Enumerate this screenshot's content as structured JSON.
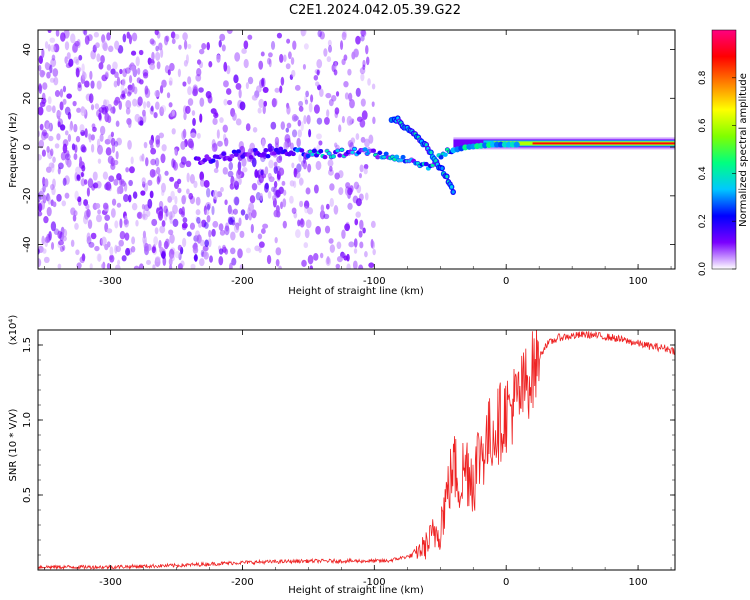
{
  "title": "C2E1.2024.042.05.39.G22",
  "chart_data": [
    {
      "type": "heatmap",
      "name": "spectrogram",
      "xlabel": "Height of straight line (km)",
      "ylabel": "Frequency (Hz)",
      "xlim": [
        -355,
        128
      ],
      "ylim": [
        -50,
        48
      ],
      "x_ticks": [
        -300,
        -200,
        -100,
        0,
        100
      ],
      "y_ticks": [
        -40,
        -20,
        0,
        20,
        40
      ],
      "grid": false,
      "colorbar": {
        "label": "Normalized spectral amplitude",
        "range": [
          0.0,
          1.0
        ],
        "ticks": [
          "0.0",
          "0.2",
          "0.4",
          "0.6",
          "0.8"
        ],
        "colormap": [
          "#ffffff",
          "#7a00ff",
          "#0000ff",
          "#00c8ff",
          "#00ff80",
          "#80ff00",
          "#ffff00",
          "#ff8000",
          "#ff0000",
          "#ff0080"
        ]
      },
      "features": {
        "noise_region_x": [
          -355,
          -100
        ],
        "noise_band_x": [
          -250,
          -140
        ],
        "main_trace": [
          [
            -230,
            -5
          ],
          [
            -200,
            -3
          ],
          [
            -170,
            -2
          ],
          [
            -140,
            -3
          ],
          [
            -110,
            -2
          ],
          [
            -85,
            -4
          ],
          [
            -60,
            -8
          ],
          [
            -45,
            -2
          ],
          [
            -30,
            0
          ],
          [
            -10,
            1
          ],
          [
            20,
            1
          ],
          [
            60,
            1
          ],
          [
            100,
            2
          ],
          [
            128,
            1
          ]
        ],
        "rising_branch": [
          [
            -85,
            12
          ],
          [
            -75,
            8
          ],
          [
            -65,
            3
          ],
          [
            -55,
            -4
          ],
          [
            -48,
            -10
          ],
          [
            -40,
            -18
          ]
        ],
        "strong_band_x": [
          -40,
          128
        ],
        "strong_band_freq": 1.5
      }
    },
    {
      "type": "line",
      "name": "snr",
      "xlabel": "Height of straight line (km)",
      "ylabel": "SNR (10 * V/V)",
      "y_exponent_label": "(x10⁴)",
      "xlim": [
        -355,
        128
      ],
      "ylim": [
        0,
        1.6
      ],
      "x_ticks": [
        -300,
        -200,
        -100,
        0,
        100
      ],
      "y_ticks": [
        "0.5",
        "1.0",
        "1.5"
      ],
      "y_tick_values": [
        0.5,
        1.0,
        1.5
      ],
      "line_color": "#ee2222",
      "series": [
        {
          "x": [
            -355,
            -300,
            -250,
            -200,
            -150,
            -110,
            -90,
            -70,
            -60,
            -50,
            -45,
            -40,
            -35,
            -30,
            -25,
            -20,
            -15,
            -10,
            -5,
            0,
            10,
            20,
            30,
            40,
            50,
            60,
            70,
            80,
            90,
            100,
            110,
            120,
            128
          ],
          "y": [
            0.02,
            0.02,
            0.03,
            0.05,
            0.06,
            0.06,
            0.06,
            0.1,
            0.17,
            0.3,
            0.5,
            0.7,
            0.6,
            0.7,
            0.62,
            0.78,
            0.85,
            0.93,
            0.98,
            1.05,
            1.15,
            1.33,
            1.5,
            1.55,
            1.56,
            1.57,
            1.56,
            1.55,
            1.53,
            1.51,
            1.49,
            1.48,
            1.46
          ]
        }
      ]
    }
  ]
}
